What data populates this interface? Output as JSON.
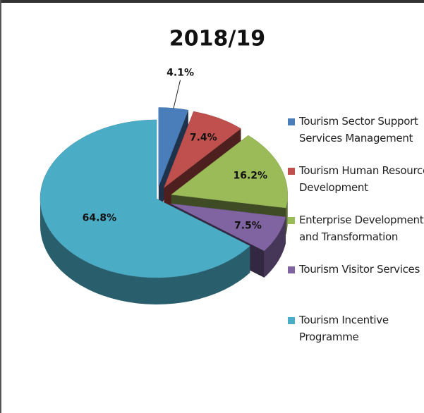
{
  "chart_data": {
    "type": "pie",
    "title": "2018/19",
    "categories": [
      "Tourism Sector Support Services Management",
      "Tourism Human Resource Development",
      "Enterprise Development and Transformation",
      "Tourism Visitor Services",
      "Tourism Incentive Programme"
    ],
    "values": [
      4.1,
      7.4,
      16.2,
      7.5,
      64.8
    ],
    "value_labels": [
      "4.1%",
      "7.4%",
      "16.2%",
      "7.5%",
      "64.8%"
    ],
    "colors": [
      "#4a7ebb",
      "#c0504d",
      "#9bbb59",
      "#8064a2",
      "#4bacc6"
    ],
    "legend": "right"
  }
}
